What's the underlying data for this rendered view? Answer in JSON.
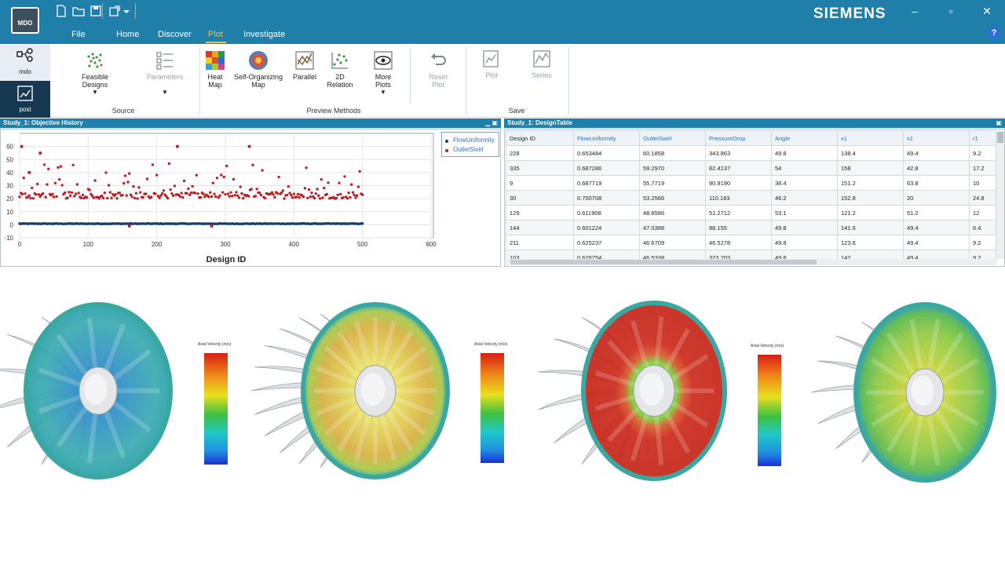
{
  "app": {
    "logo_text": "MDO",
    "brand": "SIEMENS"
  },
  "window_controls": {
    "minimize": "–",
    "maximize": "▫",
    "close": "✕",
    "help": "?"
  },
  "menu_tabs": [
    "File",
    "Home",
    "Discover",
    "Plot",
    "Investigate"
  ],
  "active_tab": "Plot",
  "left_nav": [
    {
      "label": "mdo",
      "icon": "workflow-icon"
    },
    {
      "label": "post",
      "icon": "post-icon"
    }
  ],
  "ribbon": {
    "source": {
      "group_label": "Source",
      "feasible": {
        "label_line1": "Feasible",
        "label_line2": "Designs"
      },
      "parameters": {
        "label": "Parameters"
      }
    },
    "preview": {
      "group_label": "Preview Methods",
      "heat_map": {
        "line1": "Heat",
        "line2": "Map"
      },
      "som": {
        "line1": "Self-Organizing",
        "line2": "Map"
      },
      "parallel": {
        "line1": "Parallel"
      },
      "relation2d": {
        "line1": "2D",
        "line2": "Relation"
      },
      "more_plots": {
        "line1": "More",
        "line2": "Plots"
      },
      "reset_plot": {
        "line1": "Reset",
        "line2": "Plot"
      }
    },
    "save": {
      "group_label": "Save",
      "plot": {
        "label": "Plot"
      },
      "series": {
        "label": "Series"
      }
    }
  },
  "left_panel": {
    "title": "Study_1: Objective History",
    "legend": [
      "FlowUniformity",
      "OutletSwirl"
    ]
  },
  "chart_data": {
    "type": "scatter",
    "title": "",
    "xlabel": "Design ID",
    "ylabel": "",
    "xlim": [
      0,
      600
    ],
    "ylim": [
      -10,
      70
    ],
    "xticks": [
      0,
      100,
      200,
      300,
      400,
      500,
      600
    ],
    "yticks": [
      -10,
      0,
      10,
      20,
      30,
      40,
      50,
      60
    ],
    "legend_position": "right",
    "series": [
      {
        "name": "FlowUniformity",
        "color": "#1a3d6e",
        "approx": "about 0.6–0.95 for all designs 0–500"
      },
      {
        "name": "OutletSwirl",
        "color": "#b82226",
        "approx": "mostly 20–25 for designs 0–500, outliers up to 60; two near -1 at 160 and 280"
      }
    ],
    "highlights": [
      {
        "series": "OutletSwirl",
        "x": 3,
        "y": 60
      },
      {
        "series": "OutletSwirl",
        "x": 14,
        "y": 40
      },
      {
        "series": "OutletSwirl",
        "x": 30,
        "y": 55
      },
      {
        "series": "OutletSwirl",
        "x": 230,
        "y": 60
      },
      {
        "series": "OutletSwirl",
        "x": 335,
        "y": 60
      },
      {
        "series": "OutletSwirl",
        "x": 160,
        "y": -1
      },
      {
        "series": "OutletSwirl",
        "x": 280,
        "y": -1
      }
    ]
  },
  "right_panel": {
    "title": "Study_1: DesignTable",
    "columns": [
      "Design ID",
      "FlowUniformity",
      "OutletSwirl",
      "PressureDrop",
      "Angle",
      "x1",
      "x1",
      "r1"
    ],
    "rows": [
      [
        "228",
        "0.653484",
        "60.1858",
        "343.863",
        "49.8",
        "138.4",
        "49.4",
        "9.2"
      ],
      [
        "335",
        "0.687286",
        "59.2970",
        "82.4137",
        "54",
        "158",
        "42.8",
        "17.2"
      ],
      [
        "9",
        "0.687719",
        "55.7719",
        "90.9190",
        "38.4",
        "151.2",
        "63.8",
        "10"
      ],
      [
        "30",
        "0.700708",
        "53.2566",
        "110.183",
        "46.2",
        "152.8",
        "20",
        "24.8"
      ],
      [
        "129",
        "0.611908",
        "48.8586",
        "51.2712",
        "53.1",
        "121.2",
        "51.2",
        "12"
      ],
      [
        "144",
        "0.601224",
        "47.0388",
        "88.155",
        "49.8",
        "141.6",
        "49.4",
        "6.4"
      ],
      [
        "211",
        "0.625237",
        "46.6709",
        "46.5278",
        "49.8",
        "123.6",
        "49.4",
        "9.2"
      ],
      [
        "103",
        "0.626754",
        "46.5338",
        "323.703",
        "49.8",
        "142",
        "49.4",
        "9.2"
      ]
    ]
  },
  "renders": [
    {
      "colorbar_title": "Axial Velocity (m/s)",
      "face_color": "#2aa0b4",
      "hub": "#e6e6e6"
    },
    {
      "colorbar_title": "Axial Velocity (m/s)",
      "face_color": "#d9b84a",
      "hub": "#e6e6e6"
    },
    {
      "colorbar_title": "Axial Velocity (m/s)",
      "face_color": "#cf2a1c",
      "hub": "#e6e6e6"
    },
    {
      "colorbar_title": "",
      "face_color": "#9cc63c",
      "hub": "#e6e6e6"
    }
  ]
}
